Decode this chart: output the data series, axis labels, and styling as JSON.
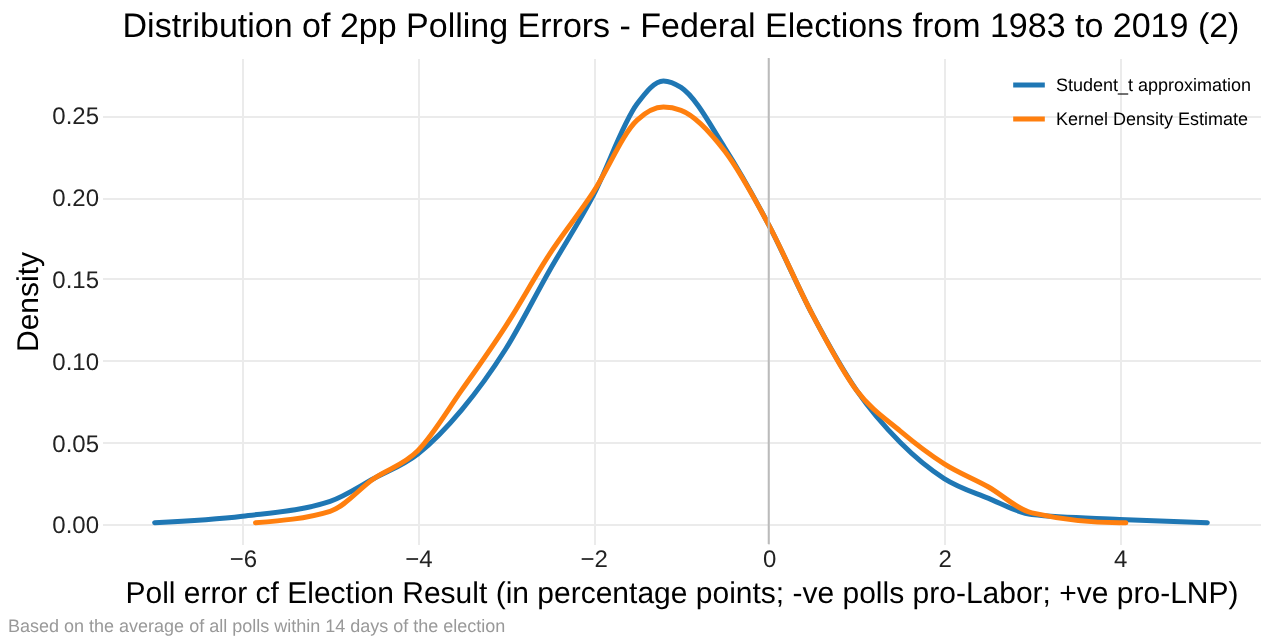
{
  "chart_data": {
    "type": "line",
    "title": "Distribution of 2pp Polling Errors - Federal Elections from 1983 to 2019 (2)",
    "xlabel": "Poll error cf Election Result (in percentage points; -ve polls pro-Labor; +ve pro-LNP)",
    "ylabel": "Density",
    "annotations": [
      "Based on the average of all polls within 14 days of the election"
    ],
    "series": [
      {
        "name": "Student_t approximation",
        "color": "#1f77b4",
        "x": [
          -7,
          -6,
          -5,
          -4.5,
          -4,
          -3.5,
          -3,
          -2.5,
          -2,
          -1.5,
          -1.2,
          -1,
          -0.5,
          0,
          0.5,
          1,
          1.5,
          2,
          2.5,
          3,
          4,
          5
        ],
        "values": [
          0.001,
          0.005,
          0.014,
          0.028,
          0.043,
          0.07,
          0.107,
          0.155,
          0.201,
          0.257,
          0.271,
          0.267,
          0.23,
          0.183,
          0.128,
          0.082,
          0.05,
          0.028,
          0.016,
          0.006,
          0.003,
          0.001
        ]
      },
      {
        "name": "Kernel Density Estimate",
        "color": "#ff7f0e",
        "x": [
          -5.85,
          -5,
          -4.5,
          -4,
          -3.5,
          -3,
          -2.5,
          -2,
          -1.5,
          -1.2,
          -1,
          -0.5,
          0,
          0.5,
          1,
          1.5,
          2,
          2.5,
          3,
          4,
          4.07
        ],
        "values": [
          0.001,
          0.008,
          0.028,
          0.045,
          0.082,
          0.121,
          0.165,
          0.203,
          0.247,
          0.255,
          0.253,
          0.228,
          0.183,
          0.128,
          0.082,
          0.057,
          0.037,
          0.023,
          0.007,
          0.001,
          0.001
        ]
      }
    ],
    "xlim": [
      -7.6,
      5.6
    ],
    "xticks": [
      -6,
      -4,
      -2,
      0,
      2,
      4
    ],
    "ylim": [
      -0.012,
      0.285
    ],
    "yticks": [
      {
        "value": 0,
        "label": "0.00"
      },
      {
        "value": 0.05,
        "label": "0.05"
      },
      {
        "value": 0.1,
        "label": "0.10"
      },
      {
        "value": 0.15,
        "label": "0.15"
      },
      {
        "value": 0.2,
        "label": "0.20"
      },
      {
        "value": 0.25,
        "label": "0.25"
      }
    ],
    "ref_lines": [
      {
        "axis": "x",
        "value": 0,
        "color": "#bbbbbb"
      }
    ],
    "grid": true,
    "legend": "top right"
  }
}
